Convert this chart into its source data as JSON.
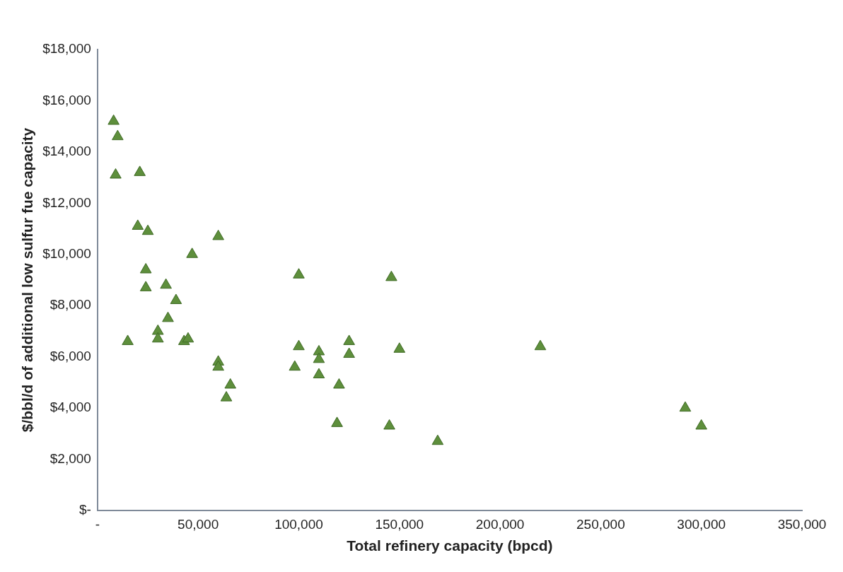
{
  "chart_data": {
    "type": "scatter",
    "xlabel": "Total refinery capacity (bpcd)",
    "ylabel": "$/bbl/d of additional low sulfur fue capacity",
    "marker": "triangle",
    "grid": false,
    "legend": false,
    "xlim": [
      0,
      350000
    ],
    "ylim": [
      0,
      18000
    ],
    "xticks": [
      {
        "value": 0,
        "label": "-"
      },
      {
        "value": 50000,
        "label": "50,000"
      },
      {
        "value": 100000,
        "label": "100,000"
      },
      {
        "value": 150000,
        "label": "150,000"
      },
      {
        "value": 200000,
        "label": "200,000"
      },
      {
        "value": 250000,
        "label": "250,000"
      },
      {
        "value": 300000,
        "label": "300,000"
      },
      {
        "value": 350000,
        "label": "350,000"
      }
    ],
    "yticks": [
      {
        "value": 0,
        "label": "$-"
      },
      {
        "value": 2000,
        "label": "$2,000"
      },
      {
        "value": 4000,
        "label": "$4,000"
      },
      {
        "value": 6000,
        "label": "$6,000"
      },
      {
        "value": 8000,
        "label": "$8,000"
      },
      {
        "value": 10000,
        "label": "$10,000"
      },
      {
        "value": 12000,
        "label": "$12,000"
      },
      {
        "value": 14000,
        "label": "$14,000"
      },
      {
        "value": 16000,
        "label": "$16,000"
      },
      {
        "value": 18000,
        "label": "$18,000"
      }
    ],
    "series": [
      {
        "color": "#5e8f3c",
        "x": [
          8000,
          10000,
          9000,
          21000,
          20000,
          25000,
          24000,
          24000,
          15000,
          30000,
          30000,
          34000,
          39000,
          35000,
          43000,
          45000,
          47000,
          60000,
          60000,
          60000,
          66000,
          64000,
          100000,
          100000,
          98000,
          110000,
          110000,
          110000,
          125000,
          125000,
          120000,
          119000,
          146000,
          150000,
          145000,
          169000,
          220000,
          292000,
          300000
        ],
        "values": [
          15200,
          14600,
          13100,
          13200,
          11100,
          10900,
          9400,
          8700,
          6600,
          7000,
          6700,
          8800,
          8200,
          7500,
          6600,
          6700,
          10000,
          10700,
          5800,
          5600,
          4900,
          4400,
          9200,
          6400,
          5600,
          6200,
          5900,
          5300,
          6600,
          6100,
          4900,
          3400,
          9100,
          6300,
          3300,
          2700,
          6400,
          4000,
          3300
        ]
      }
    ]
  }
}
